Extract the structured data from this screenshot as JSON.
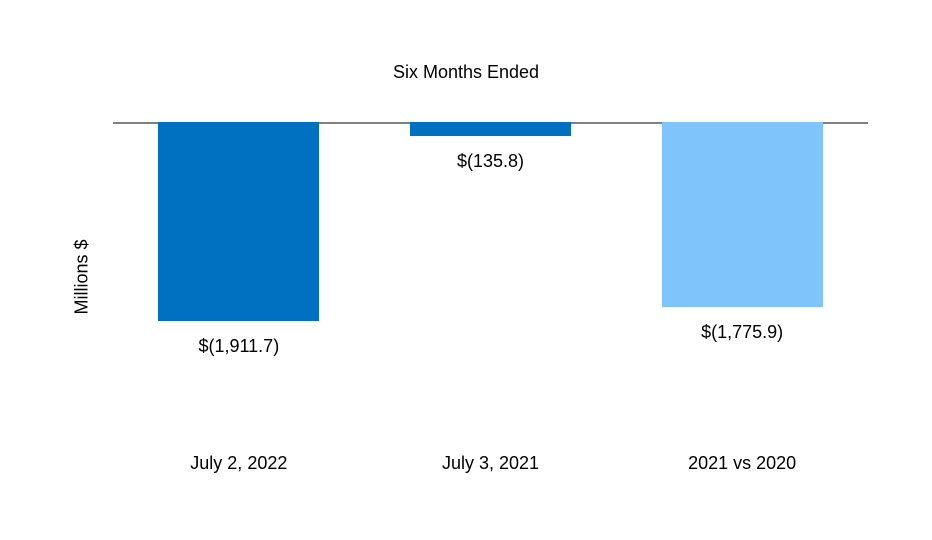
{
  "chart_data": {
    "type": "bar",
    "title": "Six Months Ended",
    "xlabel": "",
    "ylabel": "Millions $",
    "categories": [
      "July 2, 2022",
      "July 3, 2021",
      "2021 vs 2020"
    ],
    "values": [
      -1911.7,
      -135.8,
      -1775.9
    ],
    "data_labels": [
      "$(1,911.7)",
      "$(135.8)",
      "$(1,775.9)"
    ],
    "series_colors": [
      "#0070C0",
      "#0070C0",
      "#7FC5FC"
    ],
    "axis_color": "#808080",
    "background_color": "#FFFFFF",
    "ylim": [
      -2000,
      0
    ],
    "grid": false,
    "legend": "none",
    "orientation": "vertical-negative"
  }
}
